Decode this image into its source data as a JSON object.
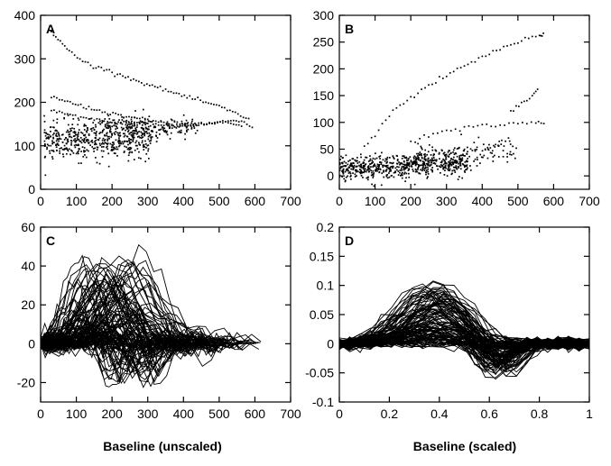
{
  "xlabels": {
    "left": "Baseline (unscaled)",
    "right": "Baseline (scaled)"
  },
  "chart_data": [
    {
      "panel": "A",
      "type": "scatter",
      "xlim": [
        0,
        700
      ],
      "ylim": [
        0,
        400
      ],
      "xticks": [
        0,
        100,
        200,
        300,
        400,
        500,
        600,
        700
      ],
      "yticks": [
        0,
        100,
        200,
        300,
        400
      ],
      "ytick_labels": [
        "0",
        "100",
        "200",
        "300",
        "400"
      ],
      "series": [
        {
          "x": [
            30,
            55,
            80,
            110,
            140,
            170,
            200,
            230,
            260,
            290,
            320,
            350,
            380,
            410,
            440,
            470,
            500,
            530,
            560,
            590
          ],
          "y": [
            360,
            340,
            318,
            300,
            285,
            278,
            270,
            262,
            252,
            244,
            236,
            228,
            220,
            212,
            205,
            198,
            190,
            180,
            170,
            160
          ]
        },
        {
          "x": [
            30,
            60,
            90,
            120,
            150,
            180,
            210,
            240,
            270,
            300,
            330,
            360,
            390,
            420,
            450,
            480,
            510,
            540,
            570,
            600
          ],
          "y": [
            212,
            205,
            198,
            190,
            184,
            178,
            172,
            168,
            163,
            158,
            155,
            152,
            150,
            148,
            150,
            152,
            155,
            158,
            152,
            140
          ]
        },
        {
          "x": [
            30,
            60,
            90,
            120,
            150,
            180,
            210,
            240,
            270,
            300,
            330,
            360,
            390,
            420,
            450,
            480,
            510,
            540,
            570
          ],
          "y": [
            180,
            175,
            170,
            165,
            160,
            158,
            156,
            154,
            152,
            150,
            148,
            146,
            145,
            147,
            150,
            152,
            155,
            150,
            145
          ]
        }
      ],
      "clouds": [
        {
          "x_center": 160,
          "x_spread": 150,
          "y_center": 115,
          "y_spread": 40,
          "n": 520
        },
        {
          "x_center": 300,
          "x_spread": 140,
          "y_center": 140,
          "y_spread": 20,
          "n": 160
        }
      ]
    },
    {
      "panel": "B",
      "type": "scatter",
      "xlim": [
        0,
        700
      ],
      "ylim": [
        -25,
        300
      ],
      "xticks": [
        0,
        100,
        200,
        300,
        400,
        500,
        600,
        700
      ],
      "yticks": [
        0,
        50,
        100,
        150,
        200,
        250,
        300
      ],
      "ytick_labels": [
        "0",
        "50",
        "100",
        "150",
        "200",
        "250",
        "300"
      ],
      "series": [
        {
          "x": [
            0,
            40,
            80,
            120,
            160,
            200,
            240,
            280,
            320,
            360,
            400,
            440,
            480,
            520,
            560,
            575
          ],
          "y": [
            0,
            25,
            60,
            95,
            130,
            145,
            165,
            180,
            195,
            208,
            222,
            235,
            245,
            255,
            262,
            265
          ]
        },
        {
          "x": [
            200,
            250,
            300,
            350,
            400,
            450,
            500,
            550,
            580
          ],
          "y": [
            60,
            75,
            85,
            90,
            95,
            95,
            98,
            100,
            98
          ]
        },
        {
          "x": [
            480,
            510,
            540,
            560
          ],
          "y": [
            120,
            135,
            150,
            168
          ]
        }
      ],
      "clouds": [
        {
          "x_center": 180,
          "x_spread": 180,
          "y_center": 20,
          "y_spread": 20,
          "n": 620
        },
        {
          "x_center": 350,
          "x_spread": 150,
          "y_center": 40,
          "y_spread": 25,
          "n": 140
        }
      ]
    },
    {
      "panel": "C",
      "type": "line",
      "xlim": [
        0,
        700
      ],
      "ylim": [
        -30,
        60
      ],
      "xticks": [
        0,
        100,
        200,
        300,
        400,
        500,
        600,
        700
      ],
      "yticks": [
        -20,
        0,
        20,
        40,
        60
      ],
      "ytick_labels": [
        "-20",
        "0",
        "20",
        "40",
        "60"
      ],
      "curve_count": 110,
      "peak_range": [
        0,
        50
      ],
      "trough_range": [
        -25,
        0
      ]
    },
    {
      "panel": "D",
      "type": "line",
      "xlim": [
        0,
        1
      ],
      "ylim": [
        -0.1,
        0.2
      ],
      "xticks": [
        0,
        0.2,
        0.4,
        0.6,
        0.8,
        1
      ],
      "xtick_labels": [
        "0",
        "0.2",
        "0.4",
        "0.6",
        "0.8",
        "1"
      ],
      "yticks": [
        -0.1,
        -0.05,
        0,
        0.05,
        0.1,
        0.15,
        0.2
      ],
      "ytick_labels": [
        "-0.1",
        "-0.05",
        "0",
        "0.05",
        "0.1",
        "0.15",
        "0.2"
      ],
      "curve_count": 110,
      "peak_range": [
        0.0,
        0.105
      ],
      "trough_range": [
        -0.06,
        0.0
      ]
    }
  ]
}
